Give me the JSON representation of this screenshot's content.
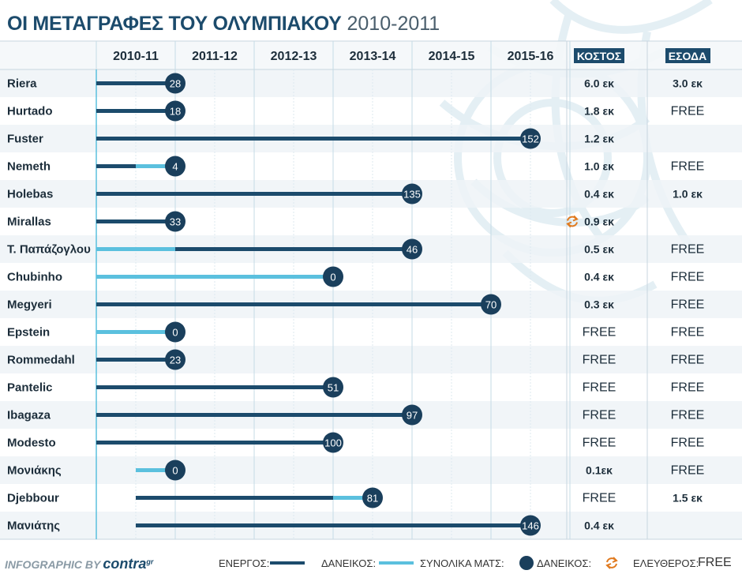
{
  "title": {
    "main": "ΟΙ ΜΕΤΑΓΡΑΦΕΣ ΤΟΥ ΟΛΥΜΠΙΑΚΟΥ",
    "years": "2010-2011"
  },
  "colors": {
    "active": "#1c4b6c",
    "loan": "#5bc0de",
    "badge_bg": "#1a3f5c",
    "accent": "#e07a1f",
    "header_badge": "#1c4b6c"
  },
  "columns": {
    "cost": "ΚΟΣΤΟΣ",
    "income": "ΕΣΟΔΑ"
  },
  "chart_data": {
    "type": "timeline",
    "seasons": [
      "2010-11",
      "2011-12",
      "2012-13",
      "2013-14",
      "2014-15",
      "2015-16"
    ],
    "players": [
      {
        "name": "Riera",
        "segments": [
          {
            "type": "active",
            "start": 0,
            "end": 1
          }
        ],
        "matches": 28,
        "cost": "6.0 εκ",
        "income": "3.0 εκ"
      },
      {
        "name": "Hurtado",
        "segments": [
          {
            "type": "active",
            "start": 0,
            "end": 1
          }
        ],
        "matches": 18,
        "cost": "1.8 εκ",
        "income": "FREE"
      },
      {
        "name": "Fuster",
        "segments": [
          {
            "type": "active",
            "start": 0,
            "end": 5.5
          }
        ],
        "matches": 152,
        "cost": "1.2 εκ",
        "income": ""
      },
      {
        "name": "Nemeth",
        "segments": [
          {
            "type": "active",
            "start": 0,
            "end": 0.5
          },
          {
            "type": "loan",
            "start": 0.5,
            "end": 1
          }
        ],
        "matches": 4,
        "cost": "1.0 εκ",
        "income": "FREE"
      },
      {
        "name": "Holebas",
        "segments": [
          {
            "type": "active",
            "start": 0,
            "end": 4
          }
        ],
        "matches": 135,
        "cost": "0.4 εκ",
        "income": "1.0 εκ"
      },
      {
        "name": "Mirallas",
        "segments": [
          {
            "type": "active",
            "start": 0,
            "end": 1
          }
        ],
        "matches": 33,
        "cost": "0.9 εκ",
        "cost_loan": true,
        "income": ""
      },
      {
        "name": "Τ. Παπάζογλου",
        "segments": [
          {
            "type": "loan",
            "start": 0,
            "end": 1
          },
          {
            "type": "active",
            "start": 1,
            "end": 4
          }
        ],
        "matches": 46,
        "cost": "0.5 εκ",
        "income": "FREE"
      },
      {
        "name": "Chubinho",
        "segments": [
          {
            "type": "loan",
            "start": 0,
            "end": 3
          }
        ],
        "matches": 0,
        "cost": "0.4 εκ",
        "income": "FREE"
      },
      {
        "name": "Megyeri",
        "segments": [
          {
            "type": "active",
            "start": 0,
            "end": 5
          }
        ],
        "matches": 70,
        "cost": "0.3 εκ",
        "income": "FREE"
      },
      {
        "name": "Epstein",
        "segments": [
          {
            "type": "loan",
            "start": 0,
            "end": 1
          }
        ],
        "matches": 0,
        "cost": "FREE",
        "income": "FREE"
      },
      {
        "name": "Rommedahl",
        "segments": [
          {
            "type": "active",
            "start": 0,
            "end": 1
          }
        ],
        "matches": 23,
        "cost": "FREE",
        "income": "FREE"
      },
      {
        "name": "Pantelic",
        "segments": [
          {
            "type": "active",
            "start": 0,
            "end": 3
          }
        ],
        "matches": 51,
        "cost": "FREE",
        "income": "FREE"
      },
      {
        "name": "Ibagaza",
        "segments": [
          {
            "type": "active",
            "start": 0,
            "end": 4
          }
        ],
        "matches": 97,
        "cost": "FREE",
        "income": "FREE"
      },
      {
        "name": "Modesto",
        "segments": [
          {
            "type": "active",
            "start": 0,
            "end": 3
          }
        ],
        "matches": 100,
        "cost": "FREE",
        "income": "FREE"
      },
      {
        "name": "Μονιάκης",
        "segments": [
          {
            "type": "loan",
            "start": 0.5,
            "end": 1
          }
        ],
        "matches": 0,
        "cost": "0.1εκ",
        "income": "FREE"
      },
      {
        "name": "Djebbour",
        "segments": [
          {
            "type": "active",
            "start": 0.5,
            "end": 3
          },
          {
            "type": "loan",
            "start": 3,
            "end": 3.5
          }
        ],
        "matches": 81,
        "cost": "FREE",
        "income": "1.5 εκ"
      },
      {
        "name": "Μανιάτης",
        "segments": [
          {
            "type": "active",
            "start": 0.5,
            "end": 5.5
          }
        ],
        "matches": 146,
        "cost": "0.4 εκ",
        "income": ""
      }
    ]
  },
  "legend": {
    "active": "ΕΝΕΡΓΟΣ:",
    "loan": "ΔΑΝΕΙΚΟΣ:",
    "matches": "ΣΥΝΟΛΙΚΑ ΜΑΤΣ:",
    "loan_deal": "ΔΑΝΕΙΚΟΣ:",
    "free": "ΕΛΕΥΘΕΡΟΣ:",
    "free_value": "FREE"
  },
  "footer": {
    "label": "INFOGRAPHIC BY",
    "brand": "contra",
    "brand_sup": "gr"
  }
}
